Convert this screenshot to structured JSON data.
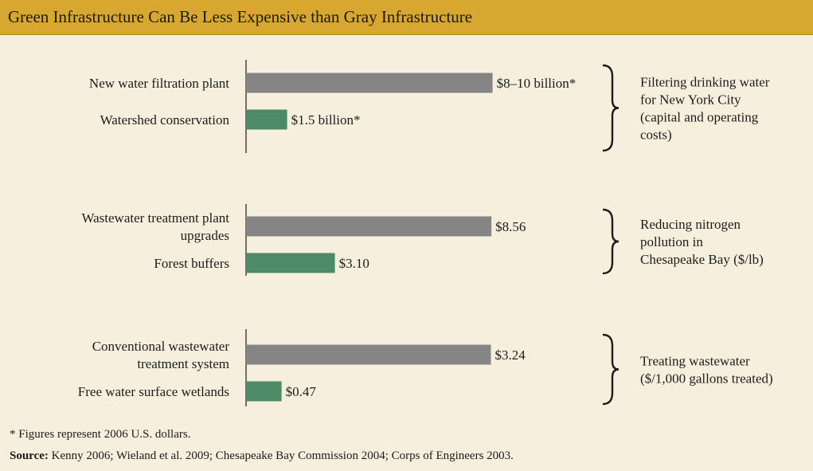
{
  "title": "Green Infrastructure Can Be Less Expensive than Gray Infrastructure",
  "colors": {
    "gray": "#858585",
    "green": "#4d8a68",
    "header": "#d8a730",
    "background": "#f7efdd"
  },
  "footnote": "* Figures represent 2006 U.S. dollars.",
  "source_label": "Source:",
  "source_text": " Kenny 2006; Wieland et al. 2009; Chesapeake Bay Commission 2004; Corps of Engineers 2003.",
  "chart_data": [
    {
      "type": "bar",
      "orientation": "horizontal",
      "group_label": [
        "Filtering drinking water",
        "for New York City",
        "(capital and operating",
        "costs)"
      ],
      "bars": [
        {
          "label": [
            "New water filtration plant"
          ],
          "value": 9.0,
          "value_label": "$8–10 billion*",
          "color": "gray"
        },
        {
          "label": [
            "Watershed conservation"
          ],
          "value": 1.5,
          "value_label": "$1.5 billion*",
          "color": "green"
        }
      ]
    },
    {
      "type": "bar",
      "orientation": "horizontal",
      "group_label": [
        "Reducing nitrogen",
        "pollution in",
        "Chesapeake Bay ($/lb)"
      ],
      "bars": [
        {
          "label": [
            "Wastewater treatment plant",
            "upgrades"
          ],
          "value": 8.56,
          "value_label": "$8.56",
          "color": "gray"
        },
        {
          "label": [
            "Forest buffers"
          ],
          "value": 3.1,
          "value_label": "$3.10",
          "color": "green"
        }
      ]
    },
    {
      "type": "bar",
      "orientation": "horizontal",
      "group_label": [
        "Treating wastewater",
        "($/1,000 gallons treated)"
      ],
      "bars": [
        {
          "label": [
            "Conventional wastewater",
            "treatment system"
          ],
          "value": 3.24,
          "value_label": "$3.24",
          "color": "gray"
        },
        {
          "label": [
            "Free water surface wetlands"
          ],
          "value": 0.47,
          "value_label": "$0.47",
          "color": "green"
        }
      ]
    }
  ]
}
